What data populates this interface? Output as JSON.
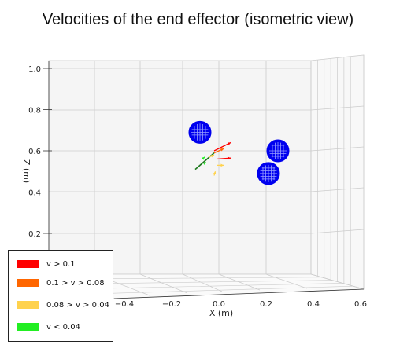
{
  "title": "Velocities of the end effector (isometric view)",
  "chart_data": {
    "type": "scatter",
    "title": "Velocities of the end effector (isometric view)",
    "xlabel": "X (m)",
    "ylabel": "Z (m)",
    "x_ticks": [
      "−0.4",
      "−0.2",
      "0.0",
      "0.2",
      "0.4",
      "0.6"
    ],
    "z_ticks": [
      "0.2",
      "0.4",
      "0.6",
      "0.8",
      "1.0"
    ],
    "xlim": [
      -0.4,
      0.6
    ],
    "zlim": [
      0.2,
      1.0
    ],
    "grid": true,
    "legend_position": "bottom-left",
    "obstacles": [
      {
        "name": "sphere-1",
        "x": -0.08,
        "z": 0.69
      },
      {
        "name": "sphere-2",
        "x": 0.25,
        "z": 0.6
      },
      {
        "name": "sphere-3",
        "x": 0.21,
        "z": 0.49
      }
    ],
    "trajectory_start": {
      "x": -0.1,
      "z": 0.51
    },
    "trajectory_end": {
      "x": -0.02,
      "z": 0.59
    },
    "velocity_vectors": [
      {
        "x": -0.02,
        "z": 0.6,
        "dx": 0.07,
        "dz": 0.04,
        "class": "v > 0.1"
      },
      {
        "x": -0.01,
        "z": 0.56,
        "dx": 0.06,
        "dz": 0.005,
        "class": "v > 0.1"
      },
      {
        "x": -0.02,
        "z": 0.59,
        "dx": 0.04,
        "dz": 0.02,
        "class": "0.1 > v > 0.08"
      },
      {
        "x": -0.04,
        "z": 0.57,
        "dx": 0.02,
        "dz": 0.01,
        "class": "0.08 > v > 0.04"
      },
      {
        "x": -0.01,
        "z": 0.53,
        "dx": 0.03,
        "dz": 0.0,
        "class": "0.08 > v > 0.04"
      },
      {
        "x": -0.02,
        "z": 0.48,
        "dx": 0.005,
        "dz": 0.02,
        "class": "0.08 > v > 0.04"
      },
      {
        "x": -0.07,
        "z": 0.56,
        "dx": 0.01,
        "dz": 0.01,
        "class": "v < 0.04"
      },
      {
        "x": -0.06,
        "z": 0.54,
        "dx": 0.005,
        "dz": 0.005,
        "class": "v < 0.04"
      }
    ],
    "legend": [
      {
        "label": "v > 0.1",
        "color": "#ff0000"
      },
      {
        "label": "0.1 > v > 0.08",
        "color": "#ff6600"
      },
      {
        "label": "0.08 > v > 0.04",
        "color": "#ffd24d"
      },
      {
        "label": "v < 0.04",
        "color": "#22ee22"
      }
    ],
    "colors": {
      "sphere": "#0000ee",
      "trajectory": "#1f7a1f",
      "grid": "#cccccc"
    }
  }
}
